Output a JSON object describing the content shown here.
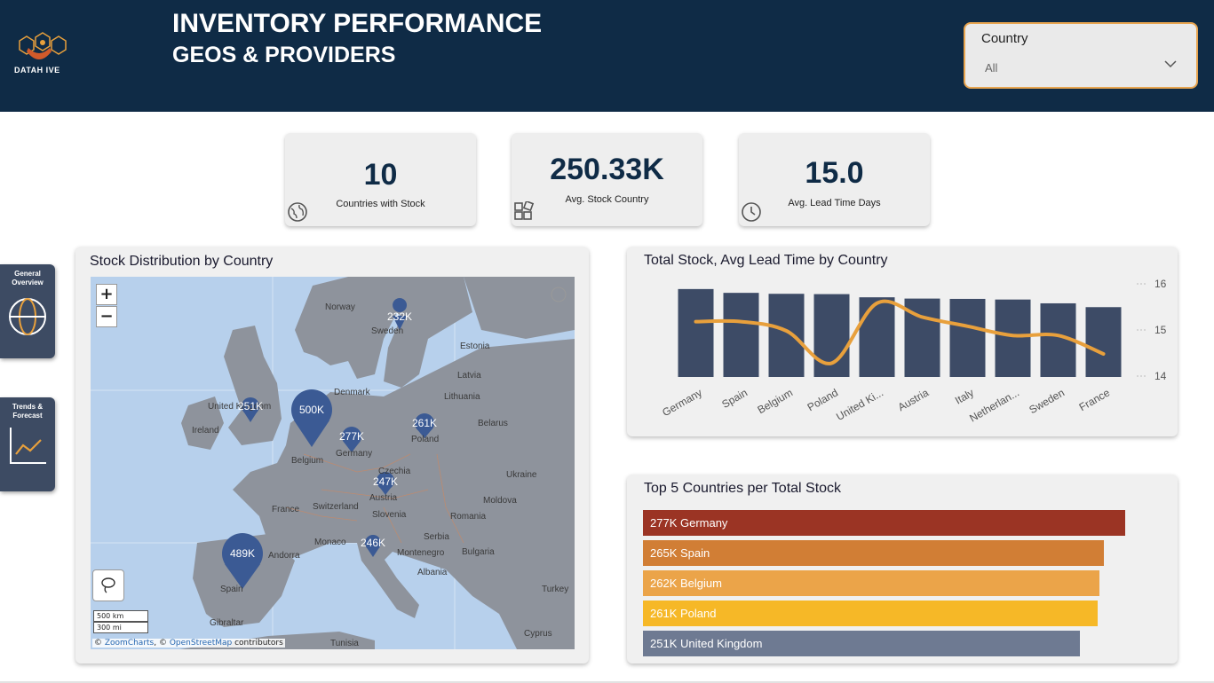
{
  "header": {
    "logo_text": "DATAH IVE",
    "title": "INVENTORY PERFORMANCE",
    "subtitle": "GEOS & PROVIDERS"
  },
  "slicer": {
    "label": "Country",
    "value": "All"
  },
  "kpis": [
    {
      "value": "10",
      "label": "Countries with Stock",
      "icon": "globe-icon"
    },
    {
      "value": "250.33K",
      "label": "Avg. Stock Country",
      "icon": "blocks-icon"
    },
    {
      "value": "15.0",
      "label": "Avg. Lead Time Days",
      "icon": "clock-icon"
    }
  ],
  "nav": [
    {
      "label_line1": "General",
      "label_line2": "Overview",
      "icon": "globe-icon"
    },
    {
      "label_line1": "Trends &",
      "label_line2": "Forecast",
      "icon": "trend-chart-icon"
    }
  ],
  "map_card": {
    "title": "Stock Distribution by Country",
    "zoom_in": "+",
    "zoom_out": "−",
    "scale_km": "500 km",
    "scale_mi": "300 mi",
    "attribution_prefix": "© ",
    "attribution_zoom": "ZoomCharts",
    "attribution_mid": ", © ",
    "attribution_osm": "OpenStreetMap",
    "attribution_suffix": " contributors",
    "pins": [
      {
        "label": "232K",
        "country": "Sweden"
      },
      {
        "label": "251K",
        "country": "United Kingdom"
      },
      {
        "label": "500K",
        "country": "Netherlands"
      },
      {
        "label": "277K",
        "country": "Germany"
      },
      {
        "label": "261K",
        "country": "Poland"
      },
      {
        "label": "247K",
        "country": "Austria"
      },
      {
        "label": "246K",
        "country": "Italy"
      },
      {
        "label": "489K",
        "country": "Spain"
      }
    ],
    "place_labels": [
      "Norway",
      "Sweden",
      "Estonia",
      "Latvia",
      "Denmark",
      "Lithuania",
      "United Kingdom",
      "Ireland",
      "Belarus",
      "Poland",
      "Belgium",
      "Germany",
      "Czechia",
      "Ukraine",
      "France",
      "Switzerland",
      "Austria",
      "Moldova",
      "Slovenia",
      "Romania",
      "Monaco",
      "Andorra",
      "Serbia",
      "Montenegro",
      "Albania",
      "Bulgaria",
      "Spain",
      "Turkey",
      "Gibraltar",
      "Tunisia",
      "Cyprus"
    ]
  },
  "chart_data": [
    {
      "type": "bar",
      "title": "Total Stock, Avg Lead Time by Country",
      "categories": [
        "Germany",
        "Spain",
        "Belgium",
        "Poland",
        "United Ki...",
        "Austria",
        "Italy",
        "Netherlan...",
        "Sweden",
        "France"
      ],
      "series": [
        {
          "type": "bar",
          "values": [
            277,
            265,
            262,
            261,
            251,
            247,
            246,
            244,
            232,
            220
          ]
        },
        {
          "type": "line",
          "values": [
            15.2,
            15.2,
            15.0,
            14.3,
            15.6,
            15.3,
            15.1,
            14.9,
            14.9,
            14.5
          ],
          "color": "#e8a03c"
        }
      ],
      "y2ticks": [
        "16",
        "15",
        "14"
      ],
      "y2lim": [
        14,
        16
      ],
      "colors": {
        "bar": "#3d4b66",
        "line": "#e8a03c"
      }
    },
    {
      "type": "bar",
      "title": "Top 5 Countries per Total Stock",
      "categories": [
        "Germany",
        "Spain",
        "Belgium",
        "Poland",
        "United Kingdom"
      ],
      "values": [
        277,
        265,
        262,
        261,
        251
      ],
      "labels": [
        "277K Germany",
        "265K Spain",
        "262K Belgium",
        "261K Poland",
        "251K United Kingdom"
      ],
      "colors": [
        "#9b3424",
        "#d17e35",
        "#eba449",
        "#f6b827",
        "#6e7a92"
      ]
    }
  ]
}
